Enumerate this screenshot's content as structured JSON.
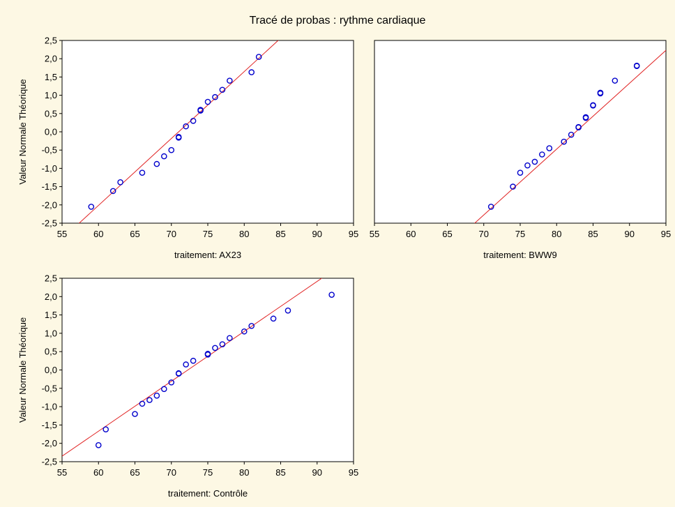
{
  "figure": {
    "title": "Tracé de probas : rythme cardiaque"
  },
  "colors": {
    "background": "#fdf8e4",
    "plot_bg": "#ffffff",
    "points": "#0000cc",
    "fit_line": "#e02020",
    "axis": "#000000"
  },
  "chart_data": [
    {
      "type": "scatter",
      "panel": "top-left",
      "subtitle": "traitement: AX23",
      "xlabel": "",
      "ylabel": "Valeur Normale Théorique",
      "xlim": [
        55,
        95
      ],
      "ylim": [
        -2.5,
        2.5
      ],
      "xticks": [
        "55",
        "60",
        "65",
        "70",
        "75",
        "80",
        "85",
        "90",
        "95"
      ],
      "yticks": [
        "2,5",
        "2,0",
        "1,5",
        "1,0",
        "0,5",
        "0,0",
        "-0,5",
        "-1,0",
        "-1,5",
        "-2,0",
        "-2,5"
      ],
      "grid": false,
      "points": [
        [
          59,
          -2.05
        ],
        [
          62,
          -1.62
        ],
        [
          63,
          -1.38
        ],
        [
          66,
          -1.12
        ],
        [
          68,
          -0.88
        ],
        [
          69,
          -0.67
        ],
        [
          70,
          -0.5
        ],
        [
          71,
          -0.16
        ],
        [
          71,
          -0.14
        ],
        [
          72,
          0.15
        ],
        [
          73,
          0.3
        ],
        [
          74,
          0.58
        ],
        [
          74,
          0.6
        ],
        [
          75,
          0.82
        ],
        [
          76,
          0.95
        ],
        [
          77,
          1.15
        ],
        [
          78,
          1.4
        ],
        [
          81,
          1.63
        ],
        [
          82,
          2.05
        ]
      ],
      "fit_line": [
        [
          56.8,
          -2.6
        ],
        [
          85.2,
          2.6
        ]
      ]
    },
    {
      "type": "scatter",
      "panel": "top-right",
      "subtitle": "traitement: BWW9",
      "xlabel": "",
      "ylabel": "",
      "xlim": [
        55,
        95
      ],
      "ylim": [
        -2.5,
        2.5
      ],
      "xticks": [
        "55",
        "60",
        "65",
        "70",
        "75",
        "80",
        "85",
        "90",
        "95"
      ],
      "yticks": [],
      "grid": false,
      "points": [
        [
          71,
          -2.05
        ],
        [
          74,
          -1.5
        ],
        [
          75,
          -1.12
        ],
        [
          76,
          -0.92
        ],
        [
          77,
          -0.82
        ],
        [
          78,
          -0.62
        ],
        [
          79,
          -0.45
        ],
        [
          81,
          -0.27
        ],
        [
          82,
          -0.08
        ],
        [
          83,
          0.12
        ],
        [
          83,
          0.13
        ],
        [
          84,
          0.38
        ],
        [
          84,
          0.4
        ],
        [
          85,
          0.72
        ],
        [
          85,
          0.73
        ],
        [
          86,
          1.05
        ],
        [
          86,
          1.07
        ],
        [
          88,
          1.4
        ],
        [
          91,
          1.8
        ],
        [
          91,
          1.81
        ]
      ],
      "fit_line": [
        [
          68.2,
          -2.6
        ],
        [
          96.5,
          2.5
        ]
      ]
    },
    {
      "type": "scatter",
      "panel": "bottom-left",
      "subtitle": "traitement: Contrôle",
      "xlabel": "",
      "ylabel": "Valeur Normale Théorique",
      "xlim": [
        55,
        95
      ],
      "ylim": [
        -2.5,
        2.5
      ],
      "xticks": [
        "55",
        "60",
        "65",
        "70",
        "75",
        "80",
        "85",
        "90",
        "95"
      ],
      "yticks": [
        "2,5",
        "2,0",
        "1,5",
        "1,0",
        "0,5",
        "0,0",
        "-0,5",
        "-1,0",
        "-1,5",
        "-2,0",
        "-2,5"
      ],
      "grid": false,
      "points": [
        [
          60,
          -2.05
        ],
        [
          61,
          -1.62
        ],
        [
          65,
          -1.2
        ],
        [
          66,
          -0.92
        ],
        [
          67,
          -0.82
        ],
        [
          68,
          -0.7
        ],
        [
          69,
          -0.52
        ],
        [
          70,
          -0.34
        ],
        [
          71,
          -0.1
        ],
        [
          71,
          -0.09
        ],
        [
          72,
          0.15
        ],
        [
          73,
          0.25
        ],
        [
          75,
          0.42
        ],
        [
          75,
          0.44
        ],
        [
          76,
          0.6
        ],
        [
          77,
          0.7
        ],
        [
          78,
          0.87
        ],
        [
          80,
          1.05
        ],
        [
          81,
          1.2
        ],
        [
          84,
          1.4
        ],
        [
          86,
          1.62
        ],
        [
          92,
          2.05
        ]
      ],
      "fit_line": [
        [
          55,
          -2.35
        ],
        [
          91,
          2.55
        ]
      ]
    }
  ]
}
